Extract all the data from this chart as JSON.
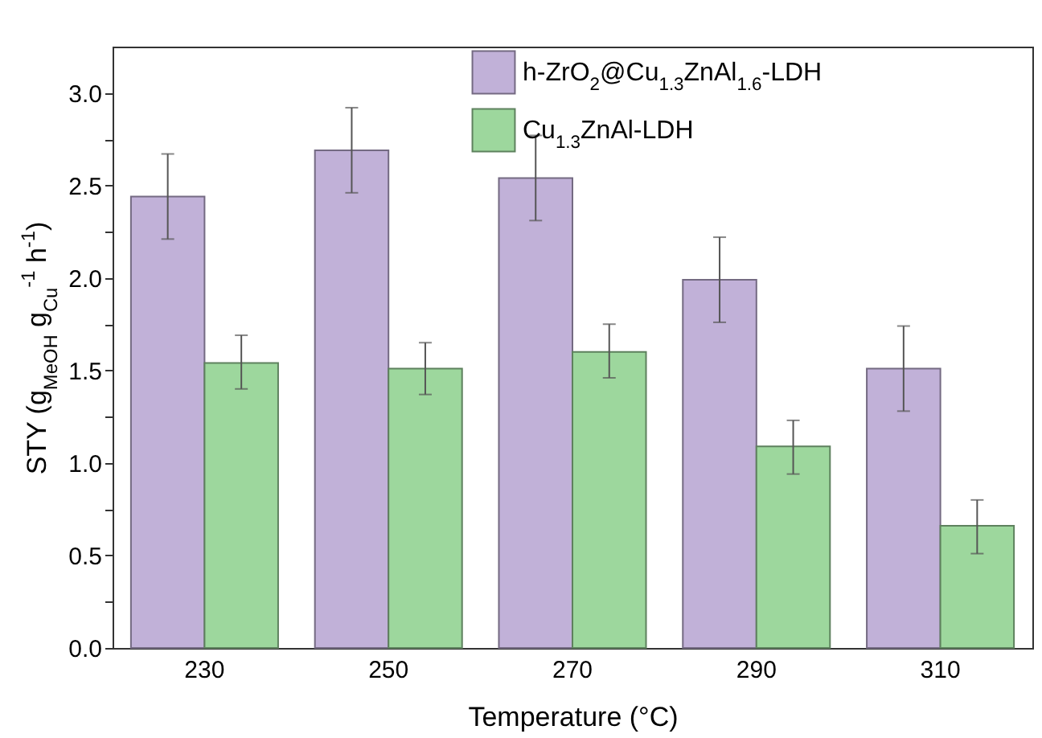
{
  "chart_data": {
    "type": "bar",
    "xlabel": "Temperature (°C)",
    "ylabel": "STY (g$_{MeOH}$ g$_{Cu}$$^{-1}$ h$^{-1}$)",
    "categories": [
      "230",
      "250",
      "270",
      "290",
      "310"
    ],
    "series": [
      {
        "name": "h-ZrO$_{2}$@Cu$_{1.3}$ZnAl$_{1.6}$-LDH",
        "color": "#c1b1d8",
        "values": [
          2.44,
          2.69,
          2.54,
          1.99,
          1.51
        ],
        "errors": [
          [
            2.21,
            2.67
          ],
          [
            2.46,
            2.92
          ],
          [
            2.31,
            2.77
          ],
          [
            1.76,
            2.22
          ],
          [
            1.28,
            1.74
          ]
        ]
      },
      {
        "name": "Cu$_{1.3}$ZnAl-LDH",
        "color": "#9dd79d",
        "values": [
          1.54,
          1.51,
          1.6,
          1.09,
          0.66
        ],
        "errors": [
          [
            1.4,
            1.69
          ],
          [
            1.37,
            1.65
          ],
          [
            1.46,
            1.75
          ],
          [
            0.94,
            1.23
          ],
          [
            0.51,
            0.8
          ]
        ]
      }
    ],
    "ylim": [
      0,
      3.25
    ],
    "yticks": [
      {
        "value": 0,
        "label": "0.0"
      },
      {
        "value": 0.25,
        "label": null
      },
      0.5,
      {
        "value": 0.75,
        "label": null
      },
      {
        "value": 1,
        "label": "1.0"
      },
      {
        "value": 1.25,
        "label": null
      },
      1.5,
      {
        "value": 1.75,
        "label": null
      },
      {
        "value": 2,
        "label": "2.0"
      },
      {
        "value": 2.25,
        "label": null
      },
      2.5,
      {
        "value": 2.75,
        "label": null
      },
      {
        "value": 3,
        "label": "3.0"
      }
    ],
    "legend": "top right"
  }
}
